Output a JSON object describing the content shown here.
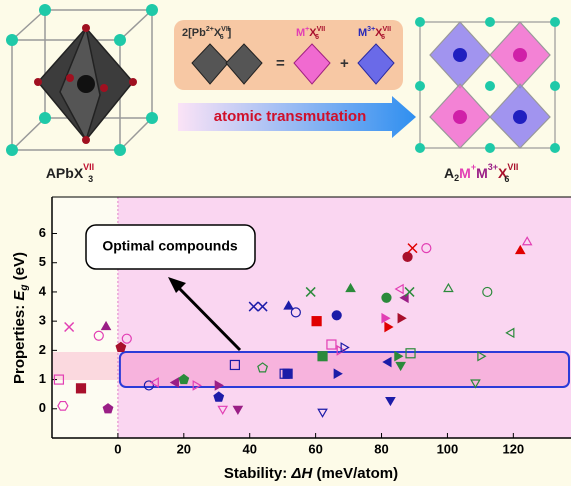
{
  "diagram": {
    "left_formula": {
      "base": "APbX",
      "sup": "VII",
      "sub": "3"
    },
    "box": {
      "lhs": {
        "pre": "2[Pb",
        "sup1": "2+",
        "mid": "X",
        "sup2": "VII",
        "sub": "6",
        "post": "]"
      },
      "equals": "=",
      "term1": {
        "metal": "M",
        "sup1": "+",
        "mid": "X",
        "sup2": "VII",
        "sub": "6"
      },
      "plus": "+",
      "term2": {
        "metal": "M",
        "sup1": "3+",
        "mid": "X",
        "sup2": "VII",
        "sub": "6"
      }
    },
    "arrow_text": "atomic transmutation",
    "right_formula": {
      "a": "A",
      "a_sub": "2",
      "m1": "M",
      "m1_sup": "+",
      "m2": "M",
      "m2_sup": "3+",
      "x": "X",
      "x_sup": "VII",
      "x_sub": "6"
    }
  },
  "chart_data": {
    "type": "scatter",
    "annotation": "Optimal compounds",
    "x_label": {
      "pre": "Stability: ",
      "symbol": "ΔH",
      "post": " (meV/atom)"
    },
    "y_label": {
      "pre": "Properties: ",
      "symbol": "E",
      "sub": "g",
      "post": " (eV)"
    },
    "xlim": [
      -20,
      137.5
    ],
    "ylim": [
      -1,
      7.25
    ],
    "xticks": [
      0,
      20,
      40,
      60,
      80,
      100,
      120
    ],
    "yticks": [
      0,
      1,
      2,
      3,
      4,
      5,
      6
    ],
    "palette": {
      "pink": "#e23fb4",
      "purple": "#9a1f86",
      "darkred": "#a8102c",
      "red": "#e00000",
      "blue": "#1c1ca8",
      "green": "#2b8a3b"
    },
    "x": [
      -14.8,
      -3.6,
      -5.8,
      0.9,
      -17.9,
      -16.7,
      -11.2,
      -3.0,
      2.7,
      9.4,
      11.5,
      17.6,
      20.0,
      23.6,
      30.6,
      30.3,
      31.8,
      36.4,
      35.5,
      43.9,
      41.2,
      43.9,
      50.6,
      51.5,
      51.8,
      54.0,
      58.5,
      60.3,
      62.1,
      62.1,
      64.8,
      66.4,
      66.4,
      67.3,
      68.5,
      70.6,
      81.5,
      80.9,
      81.8,
      82.1,
      82.7,
      85.8,
      84.8,
      85.8,
      87.3,
      88.5,
      85.8,
      88.8,
      87.9,
      89.4,
      93.6,
      100.3,
      112.1,
      110.0,
      108.5,
      119.4,
      124.2,
      122.1
    ],
    "y": [
      2.8,
      2.8,
      2.5,
      2.1,
      1.0,
      0.1,
      0.7,
      0.0,
      2.4,
      0.8,
      0.9,
      0.9,
      1.0,
      0.8,
      0.4,
      0.8,
      0.0,
      0.0,
      1.5,
      1.4,
      3.5,
      3.5,
      1.2,
      1.2,
      3.5,
      3.3,
      4.0,
      3.0,
      1.8,
      -0.1,
      2.2,
      3.2,
      1.2,
      2.0,
      2.1,
      4.1,
      3.8,
      3.1,
      2.8,
      1.6,
      0.3,
      4.1,
      1.8,
      1.5,
      3.8,
      4.0,
      3.1,
      1.9,
      5.2,
      5.5,
      5.5,
      4.1,
      4.0,
      1.8,
      0.9,
      2.6,
      5.7,
      5.4
    ],
    "colors": [
      "pink",
      "purple",
      "pink",
      "darkred",
      "pink",
      "pink",
      "darkred",
      "purple",
      "pink",
      "blue",
      "pink",
      "purple",
      "green",
      "pink",
      "blue",
      "purple",
      "pink",
      "purple",
      "blue",
      "green",
      "blue",
      "blue",
      "blue",
      "blue",
      "blue",
      "blue",
      "green",
      "red",
      "green",
      "blue",
      "pink",
      "blue",
      "blue",
      "pink",
      "blue",
      "green",
      "green",
      "pink",
      "red",
      "blue",
      "blue",
      "pink",
      "green",
      "green",
      "purple",
      "green",
      "darkred",
      "green",
      "darkred",
      "red",
      "pink",
      "green",
      "green",
      "green",
      "green",
      "green",
      "pink",
      "red"
    ],
    "markers": [
      "x",
      "^",
      "o",
      "p",
      "s",
      "h",
      "s",
      "p",
      "o",
      "o",
      "<",
      "<",
      "p",
      ">",
      "p",
      ">",
      "v",
      "v",
      "s",
      "p",
      "x",
      "x",
      "s",
      "s",
      "^",
      "o",
      "x",
      "s",
      "s",
      "v",
      "s",
      "o",
      ">",
      ">",
      ">",
      "^",
      "o",
      ">",
      ">",
      "<",
      "v",
      "<",
      ">",
      "v",
      "<",
      "x",
      ">",
      "s",
      "o",
      "x",
      "o",
      "^",
      "o",
      ">",
      "v",
      "<",
      "^",
      "^"
    ],
    "filled": [
      true,
      true,
      false,
      true,
      false,
      false,
      true,
      true,
      false,
      false,
      false,
      true,
      true,
      false,
      true,
      true,
      false,
      true,
      false,
      false,
      true,
      true,
      false,
      true,
      true,
      false,
      true,
      true,
      true,
      false,
      false,
      true,
      true,
      false,
      false,
      true,
      true,
      true,
      true,
      true,
      true,
      false,
      true,
      true,
      true,
      true,
      true,
      false,
      true,
      true,
      false,
      false,
      false,
      false,
      false,
      false,
      false,
      true
    ]
  }
}
